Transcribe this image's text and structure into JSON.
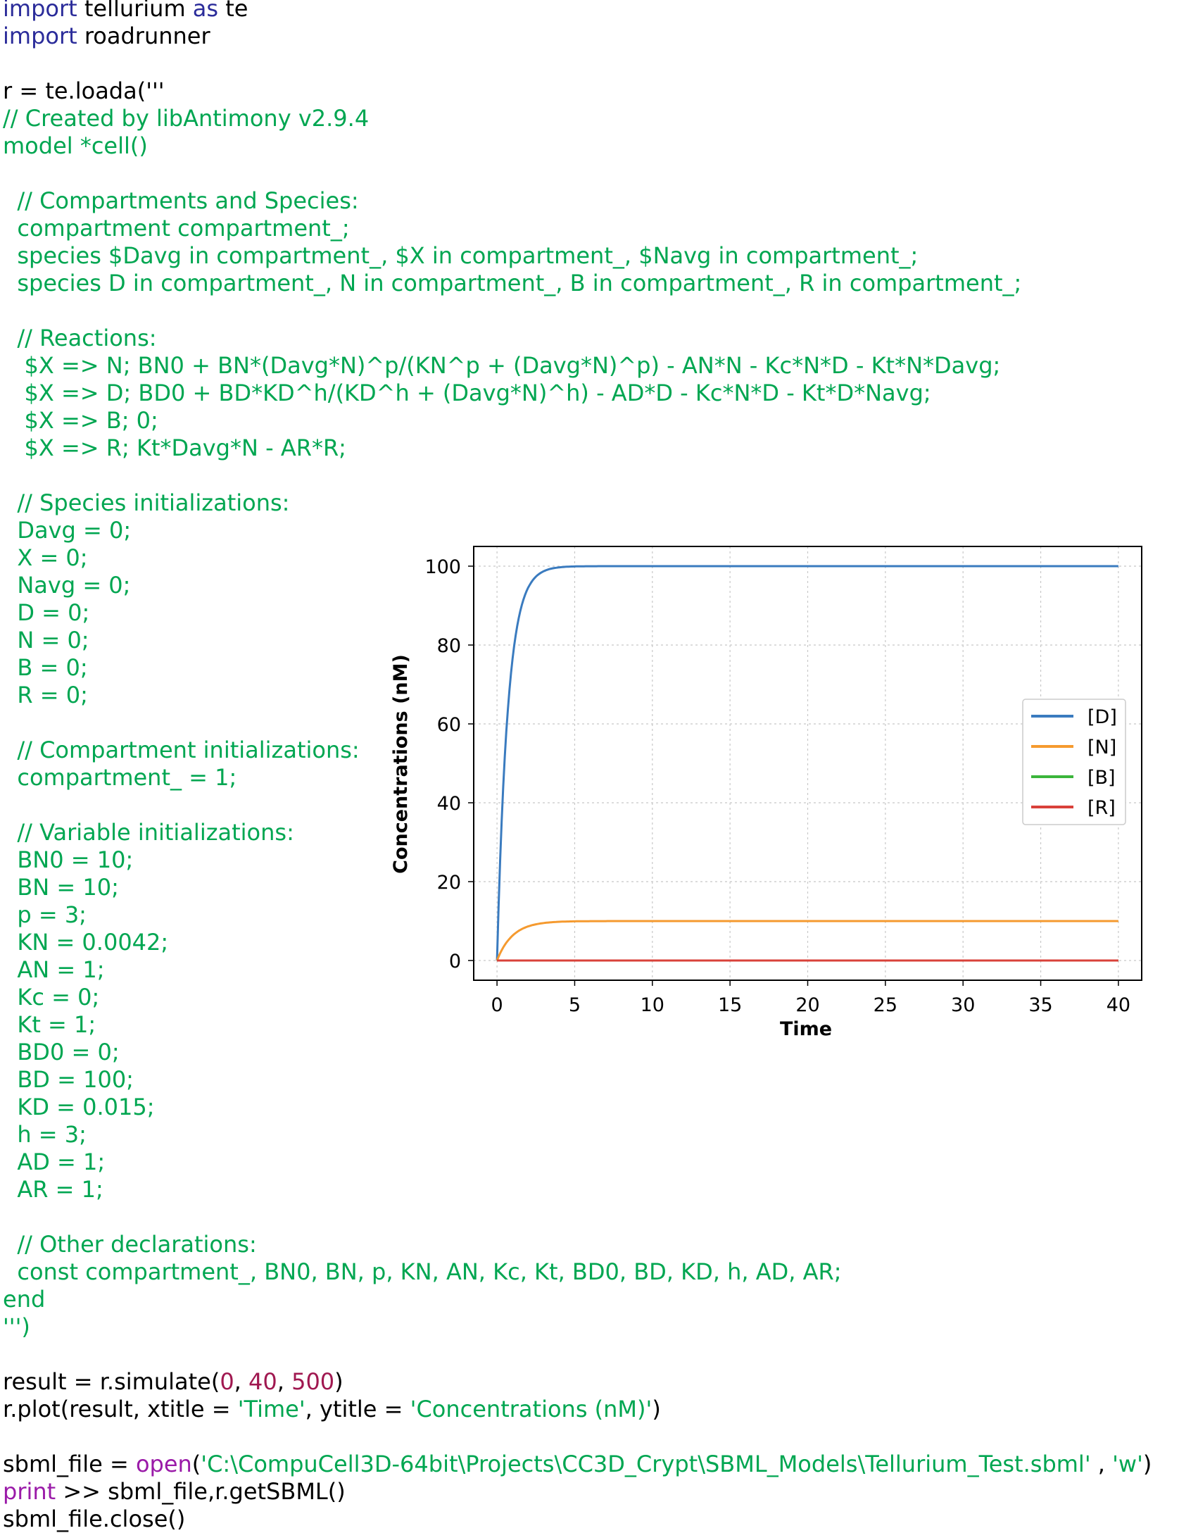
{
  "code": {
    "l1": {
      "kw": "import",
      "rest": " tellurium ",
      "kw2": "as",
      "rest2": " te"
    },
    "l2": {
      "kw": "import",
      "rest": " roadrunner"
    },
    "l4": {
      "plain": "r = te.loada('''"
    },
    "l5": "// Created by libAntimony v2.9.4",
    "l6": "model *cell()",
    "l8": "  // Compartments and Species:",
    "l9": "  compartment compartment_;",
    "l10": "  species $Davg in compartment_, $X in compartment_, $Navg in compartment_;",
    "l11": "  species D in compartment_, N in compartment_, B in compartment_, R in compartment_;",
    "l13": "  // Reactions:",
    "l14": "   $X => N; BN0 + BN*(Davg*N)^p/(KN^p + (Davg*N)^p) - AN*N - Kc*N*D - Kt*N*Davg;",
    "l15": "   $X => D; BD0 + BD*KD^h/(KD^h + (Davg*N)^h) - AD*D - Kc*N*D - Kt*D*Navg;",
    "l16": "   $X => B; 0;",
    "l17": "   $X => R; Kt*Davg*N - AR*R;",
    "l19": "  // Species initializations:",
    "l20": "  Davg = 0;",
    "l21": "  X = 0;",
    "l22": "  Navg = 0;",
    "l23": "  D = 0;",
    "l24": "  N = 0;",
    "l25": "  B = 0;",
    "l26": "  R = 0;",
    "l28": "  // Compartment initializations:",
    "l29": "  compartment_ = 1;",
    "l31": "  // Variable initializations:",
    "l32": "  BN0 = 10;",
    "l33": "  BN = 10;",
    "l34": "  p = 3;",
    "l35": "  KN = 0.0042;",
    "l36": "  AN = 1;",
    "l37": "  Kc = 0;",
    "l38": "  Kt = 1;",
    "l39": "  BD0 = 0;",
    "l40": "  BD = 100;",
    "l41": "  KD = 0.015;",
    "l42": "  h = 3;",
    "l43": "  AD = 1;",
    "l44": "  AR = 1;",
    "l46": "  // Other declarations:",
    "l47": "  const compartment_, BN0, BN, p, KN, AN, Kc, Kt, BD0, BD, KD, h, AD, AR;",
    "l48": "end",
    "l49": "''')",
    "l51": {
      "a": "result = r.simulate(",
      "n1": "0",
      "c1": ", ",
      "n2": "40",
      "c2": ", ",
      "n3": "500",
      "b": ")"
    },
    "l52": {
      "a": "r.plot(result, xtitle = ",
      "s1": "'Time'",
      "b": ", ytitle = ",
      "s2": "'Concentrations (nM)'",
      "c": ")"
    },
    "l54": {
      "a": "sbml_file = ",
      "fn": "open",
      "b": "(",
      "s1": "'C:\\CompuCell3D-64bit\\Projects\\CC3D_Crypt\\SBML_Models\\Tellurium_Test.sbml'",
      "c": " , ",
      "s2": "'w'",
      "d": ")"
    },
    "l55": {
      "kw": "print",
      "rest": " >> sbml_file,r.getSBML()"
    },
    "l56": "sbml_file.close()"
  },
  "chart_data": {
    "type": "line",
    "xlabel": "Time",
    "ylabel": "Concentrations (nM)",
    "xlim": [
      -1.5,
      41.5
    ],
    "ylim": [
      -5,
      105
    ],
    "xticks": [
      0,
      5,
      10,
      15,
      20,
      25,
      30,
      35,
      40
    ],
    "yticks": [
      0,
      20,
      40,
      60,
      80,
      100
    ],
    "grid": true,
    "legend_position": "center-right",
    "series": [
      {
        "name": "[D]",
        "color": "#3a7bbf",
        "steady": 100,
        "rate": 1.45
      },
      {
        "name": "[N]",
        "color": "#f59a2f",
        "steady": 10,
        "rate": 1.0
      },
      {
        "name": "[B]",
        "color": "#3bb53b",
        "steady": 0,
        "rate": 1.0
      },
      {
        "name": "[R]",
        "color": "#d9413a",
        "steady": 0,
        "rate": 1.0
      }
    ]
  }
}
